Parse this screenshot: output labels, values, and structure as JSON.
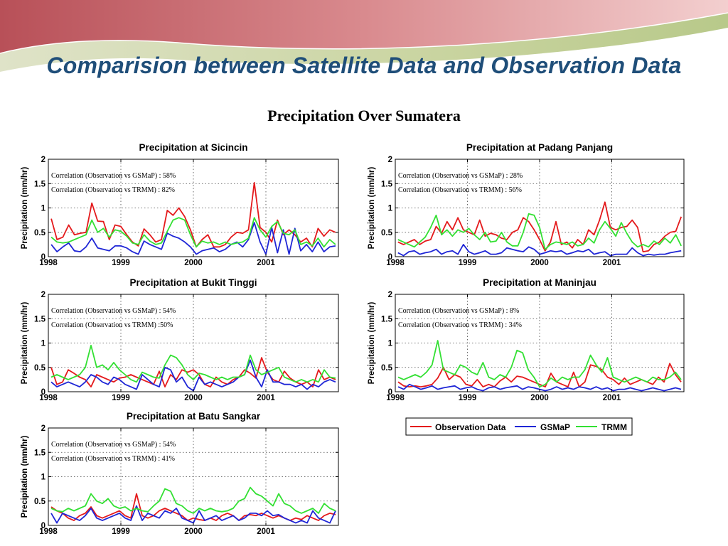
{
  "slide": {
    "title": "Comparision between Satellite Data and Observation Data",
    "subtitle": "Precipitation Over Sumatera"
  },
  "legend": {
    "items": [
      {
        "label": "Observation Data",
        "color": "#E41A1C"
      },
      {
        "label": "GSMaP",
        "color": "#1F26D6"
      },
      {
        "label": "TRMM",
        "color": "#33E033"
      }
    ]
  },
  "chart_data": [
    {
      "type": "line",
      "title": "Precipitation at Sicincin",
      "ylabel": "Precipitation (mm/hr)",
      "xlabel": "",
      "xlim": [
        1998,
        2002
      ],
      "ylim": [
        0,
        2
      ],
      "x_ticks": [
        1998,
        1999,
        2000,
        2001
      ],
      "y_ticks": [
        0,
        0.5,
        1,
        1.5,
        2
      ],
      "grid": true,
      "annotations": [
        "Correlation (Observation vs GSMaP) : 58%",
        "Correlation (Observation vs TRMM) : 82%"
      ],
      "series": [
        {
          "name": "Observation Data",
          "values": [
            0.78,
            0.35,
            0.4,
            0.65,
            0.45,
            0.48,
            0.5,
            1.1,
            0.73,
            0.72,
            0.35,
            0.65,
            0.62,
            0.45,
            0.3,
            0.22,
            0.57,
            0.45,
            0.3,
            0.35,
            0.95,
            0.85,
            1.0,
            0.82,
            0.55,
            0.2,
            0.35,
            0.45,
            0.2,
            0.2,
            0.25,
            0.4,
            0.5,
            0.48,
            0.55,
            1.52,
            0.6,
            0.5,
            0.3,
            0.75,
            0.45,
            0.55,
            0.45,
            0.3,
            0.38,
            0.2,
            0.58,
            0.42,
            0.55,
            0.5
          ]
        },
        {
          "name": "GSMaP",
          "values": [
            0.25,
            0.1,
            0.2,
            0.28,
            0.12,
            0.1,
            0.2,
            0.38,
            0.18,
            0.15,
            0.12,
            0.22,
            0.22,
            0.18,
            0.1,
            0.05,
            0.32,
            0.25,
            0.2,
            0.15,
            0.48,
            0.42,
            0.38,
            0.3,
            0.2,
            0.05,
            0.12,
            0.15,
            0.18,
            0.1,
            0.15,
            0.25,
            0.3,
            0.2,
            0.35,
            0.7,
            0.3,
            0.05,
            0.6,
            0.08,
            0.55,
            0.05,
            0.58,
            0.12,
            0.25,
            0.1,
            0.3,
            0.1,
            0.2,
            0.22
          ]
        },
        {
          "name": "TRMM",
          "values": [
            0.4,
            0.3,
            0.28,
            0.3,
            0.35,
            0.4,
            0.45,
            0.75,
            0.5,
            0.58,
            0.4,
            0.55,
            0.52,
            0.42,
            0.28,
            0.25,
            0.45,
            0.32,
            0.25,
            0.28,
            0.52,
            0.75,
            0.8,
            0.75,
            0.45,
            0.2,
            0.32,
            0.28,
            0.3,
            0.25,
            0.3,
            0.25,
            0.28,
            0.3,
            0.38,
            0.8,
            0.55,
            0.4,
            0.62,
            0.72,
            0.48,
            0.45,
            0.55,
            0.25,
            0.3,
            0.22,
            0.38,
            0.2,
            0.35,
            0.25
          ]
        }
      ]
    },
    {
      "type": "line",
      "title": "Precipitation at Padang Panjang",
      "ylabel": "Precipitation (mm/hr)",
      "xlabel": "",
      "xlim": [
        1998,
        2002
      ],
      "ylim": [
        0,
        2
      ],
      "x_ticks": [
        1998,
        1999,
        2000,
        2001
      ],
      "y_ticks": [
        0,
        0.5,
        1,
        1.5,
        2
      ],
      "grid": true,
      "annotations": [
        "Correlation (Observation vs GSMaP) : 28%",
        "Correlation (Observation vs TRMM) : 56%"
      ],
      "series": [
        {
          "name": "Observation Data",
          "values": [
            0.3,
            0.25,
            0.3,
            0.35,
            0.25,
            0.32,
            0.35,
            0.62,
            0.48,
            0.72,
            0.55,
            0.8,
            0.55,
            0.5,
            0.45,
            0.75,
            0.42,
            0.48,
            0.45,
            0.38,
            0.35,
            0.5,
            0.55,
            0.8,
            0.72,
            0.55,
            0.35,
            0.12,
            0.3,
            0.72,
            0.25,
            0.3,
            0.18,
            0.35,
            0.25,
            0.55,
            0.45,
            0.75,
            1.12,
            0.6,
            0.55,
            0.6,
            0.62,
            0.75,
            0.6,
            0.1,
            0.12,
            0.25,
            0.3,
            0.42,
            0.5,
            0.52,
            0.82
          ]
        },
        {
          "name": "GSMaP",
          "values": [
            0.08,
            0.02,
            0.1,
            0.12,
            0.05,
            0.08,
            0.1,
            0.15,
            0.05,
            0.1,
            0.12,
            0.05,
            0.25,
            0.1,
            0.05,
            0.08,
            0.12,
            0.05,
            0.05,
            0.08,
            0.18,
            0.15,
            0.12,
            0.1,
            0.2,
            0.15,
            0.05,
            0.08,
            0.12,
            0.1,
            0.12,
            0.05,
            0.08,
            0.12,
            0.1,
            0.15,
            0.05,
            0.08,
            0.1,
            0.02,
            0.05,
            0.05,
            0.05,
            0.18,
            0.08,
            0.02,
            0.05,
            0.03,
            0.05,
            0.05,
            0.08,
            0.1,
            0.12
          ]
        },
        {
          "name": "TRMM",
          "values": [
            0.35,
            0.3,
            0.25,
            0.2,
            0.3,
            0.4,
            0.6,
            0.85,
            0.45,
            0.55,
            0.42,
            0.55,
            0.5,
            0.58,
            0.45,
            0.35,
            0.5,
            0.3,
            0.32,
            0.5,
            0.3,
            0.22,
            0.22,
            0.5,
            0.88,
            0.85,
            0.6,
            0.15,
            0.25,
            0.3,
            0.28,
            0.25,
            0.3,
            0.22,
            0.25,
            0.38,
            0.28,
            0.55,
            0.72,
            0.58,
            0.42,
            0.7,
            0.48,
            0.3,
            0.2,
            0.25,
            0.2,
            0.32,
            0.25,
            0.38,
            0.28,
            0.45,
            0.22
          ]
        }
      ]
    },
    {
      "type": "line",
      "title": "Precipitation at Bukit Tinggi",
      "ylabel": "Precipitation (mm/hr)",
      "xlabel": "",
      "xlim": [
        1998,
        2002
      ],
      "ylim": [
        0,
        2
      ],
      "x_ticks": [
        1998,
        1999,
        2000,
        2001
      ],
      "y_ticks": [
        0,
        0.5,
        1,
        1.5,
        2
      ],
      "grid": true,
      "annotations": [
        "Correlation (Observation vs GSMaP) : 54%",
        "Correlation (Observation vs TRMM) :50%"
      ],
      "series": [
        {
          "name": "Observation Data",
          "values": [
            0.5,
            0.15,
            0.2,
            0.45,
            0.38,
            0.3,
            0.25,
            0.1,
            0.35,
            0.3,
            0.25,
            0.2,
            0.28,
            0.3,
            0.35,
            0.3,
            0.25,
            0.2,
            0.15,
            0.42,
            0.1,
            0.35,
            0.25,
            0.45,
            0.4,
            0.45,
            0.35,
            0.15,
            0.1,
            0.3,
            0.2,
            0.15,
            0.25,
            0.3,
            0.45,
            0.38,
            0.28,
            0.7,
            0.4,
            0.25,
            0.2,
            0.42,
            0.28,
            0.2,
            0.15,
            0.2,
            0.1,
            0.45,
            0.25,
            0.3,
            0.25
          ]
        },
        {
          "name": "GSMaP",
          "values": [
            0.2,
            0.1,
            0.15,
            0.2,
            0.15,
            0.1,
            0.2,
            0.35,
            0.3,
            0.2,
            0.15,
            0.3,
            0.25,
            0.15,
            0.1,
            0.05,
            0.35,
            0.25,
            0.15,
            0.1,
            0.5,
            0.45,
            0.2,
            0.3,
            0.1,
            0.02,
            0.3,
            0.15,
            0.2,
            0.15,
            0.1,
            0.15,
            0.2,
            0.3,
            0.35,
            0.65,
            0.3,
            0.1,
            0.45,
            0.2,
            0.2,
            0.15,
            0.15,
            0.1,
            0.15,
            0.05,
            0.15,
            0.1,
            0.2,
            0.25,
            0.2
          ]
        },
        {
          "name": "TRMM",
          "values": [
            0.3,
            0.35,
            0.3,
            0.25,
            0.3,
            0.35,
            0.5,
            0.95,
            0.5,
            0.55,
            0.45,
            0.6,
            0.45,
            0.35,
            0.25,
            0.2,
            0.4,
            0.35,
            0.3,
            0.28,
            0.55,
            0.75,
            0.7,
            0.55,
            0.35,
            0.25,
            0.38,
            0.35,
            0.3,
            0.25,
            0.3,
            0.25,
            0.3,
            0.3,
            0.35,
            0.75,
            0.45,
            0.35,
            0.4,
            0.45,
            0.5,
            0.3,
            0.25,
            0.2,
            0.25,
            0.2,
            0.25,
            0.2,
            0.45,
            0.3,
            0.28
          ]
        }
      ]
    },
    {
      "type": "line",
      "title": "Precipitation at Maninjau",
      "ylabel": "Precipitation (mm/hr)",
      "xlabel": "",
      "xlim": [
        1998,
        2002
      ],
      "ylim": [
        0,
        2
      ],
      "x_ticks": [
        1998,
        1999,
        2000,
        2001
      ],
      "y_ticks": [
        0,
        0.5,
        1,
        1.5,
        2
      ],
      "grid": true,
      "annotations": [
        "Correlation (Observation vs GSMaP) : 8%",
        "Correlation (Observation vs TRMM) : 34%"
      ],
      "series": [
        {
          "name": "Observation Data",
          "values": [
            0.2,
            0.12,
            0.1,
            0.12,
            0.1,
            0.12,
            0.15,
            0.28,
            0.5,
            0.25,
            0.35,
            0.3,
            0.15,
            0.12,
            0.25,
            0.1,
            0.15,
            0.1,
            0.22,
            0.3,
            0.2,
            0.32,
            0.3,
            0.25,
            0.2,
            0.15,
            0.1,
            0.38,
            0.2,
            0.15,
            0.1,
            0.4,
            0.1,
            0.2,
            0.55,
            0.52,
            0.45,
            0.3,
            0.25,
            0.15,
            0.28,
            0.15,
            0.2,
            0.25,
            0.2,
            0.15,
            0.3,
            0.2,
            0.58,
            0.35,
            0.2
          ]
        },
        {
          "name": "GSMaP",
          "values": [
            0.1,
            0.05,
            0.15,
            0.1,
            0.05,
            0.08,
            0.12,
            0.05,
            0.08,
            0.1,
            0.12,
            0.05,
            0.08,
            0.1,
            0.05,
            0.02,
            0.08,
            0.1,
            0.05,
            0.08,
            0.1,
            0.12,
            0.05,
            0.1,
            0.08,
            0.05,
            0.02,
            0.05,
            0.1,
            0.05,
            0.08,
            0.05,
            0.1,
            0.08,
            0.05,
            0.1,
            0.05,
            0.08,
            0.02,
            0.05,
            0.05,
            0.08,
            0.05,
            0.02,
            0.05,
            0.08,
            0.05,
            0.02,
            0.05,
            0.08,
            0.05
          ]
        },
        {
          "name": "TRMM",
          "values": [
            0.3,
            0.25,
            0.3,
            0.35,
            0.3,
            0.4,
            0.55,
            1.05,
            0.45,
            0.4,
            0.35,
            0.55,
            0.5,
            0.4,
            0.35,
            0.6,
            0.3,
            0.25,
            0.35,
            0.3,
            0.5,
            0.85,
            0.8,
            0.45,
            0.3,
            0.1,
            0.15,
            0.28,
            0.2,
            0.3,
            0.25,
            0.3,
            0.3,
            0.45,
            0.75,
            0.55,
            0.4,
            0.7,
            0.3,
            0.25,
            0.2,
            0.25,
            0.3,
            0.25,
            0.2,
            0.3,
            0.25,
            0.25,
            0.3,
            0.4,
            0.25
          ]
        }
      ]
    },
    {
      "type": "line",
      "title": "Precipitation at Batu Sangkar",
      "ylabel": "Precipitation (mm/hr)",
      "xlabel": "",
      "xlim": [
        1998,
        2002
      ],
      "ylim": [
        0,
        2
      ],
      "x_ticks": [
        1998,
        1999,
        2000,
        2001
      ],
      "y_ticks": [
        0,
        0.5,
        1,
        1.5,
        2
      ],
      "grid": true,
      "annotations": [
        "Correlation (Observation vs GSMaP) : 54%",
        "Correlation (Observation vs TRMM) : 41%"
      ],
      "series": [
        {
          "name": "Observation Data",
          "values": [
            0.38,
            0.3,
            0.25,
            0.15,
            0.1,
            0.2,
            0.25,
            0.38,
            0.2,
            0.15,
            0.2,
            0.25,
            0.3,
            0.2,
            0.15,
            0.65,
            0.2,
            0.15,
            0.2,
            0.3,
            0.35,
            0.3,
            0.25,
            0.2,
            0.1,
            0.15,
            0.12,
            0.1,
            0.15,
            0.1,
            0.2,
            0.25,
            0.2,
            0.1,
            0.2,
            0.22,
            0.2,
            0.25,
            0.2,
            0.15,
            0.2,
            0.15,
            0.1,
            0.15,
            0.12,
            0.2,
            0.15,
            0.1,
            0.2,
            0.25,
            0.22
          ]
        },
        {
          "name": "GSMaP",
          "values": [
            0.25,
            0.05,
            0.25,
            0.2,
            0.15,
            0.1,
            0.2,
            0.35,
            0.15,
            0.1,
            0.15,
            0.2,
            0.25,
            0.15,
            0.1,
            0.4,
            0.1,
            0.25,
            0.2,
            0.15,
            0.3,
            0.25,
            0.35,
            0.15,
            0.1,
            0.05,
            0.3,
            0.1,
            0.15,
            0.2,
            0.1,
            0.15,
            0.2,
            0.1,
            0.15,
            0.25,
            0.25,
            0.2,
            0.3,
            0.2,
            0.22,
            0.15,
            0.1,
            0.05,
            0.1,
            0.05,
            0.3,
            0.15,
            0.1,
            0.05,
            0.3
          ]
        },
        {
          "name": "TRMM",
          "values": [
            0.35,
            0.3,
            0.28,
            0.35,
            0.3,
            0.35,
            0.4,
            0.65,
            0.5,
            0.45,
            0.55,
            0.4,
            0.35,
            0.38,
            0.3,
            0.35,
            0.3,
            0.28,
            0.4,
            0.5,
            0.75,
            0.7,
            0.45,
            0.4,
            0.3,
            0.25,
            0.35,
            0.3,
            0.35,
            0.3,
            0.28,
            0.3,
            0.35,
            0.5,
            0.55,
            0.78,
            0.65,
            0.6,
            0.5,
            0.4,
            0.65,
            0.45,
            0.4,
            0.3,
            0.25,
            0.3,
            0.35,
            0.25,
            0.45,
            0.35,
            0.3
          ]
        }
      ]
    }
  ]
}
